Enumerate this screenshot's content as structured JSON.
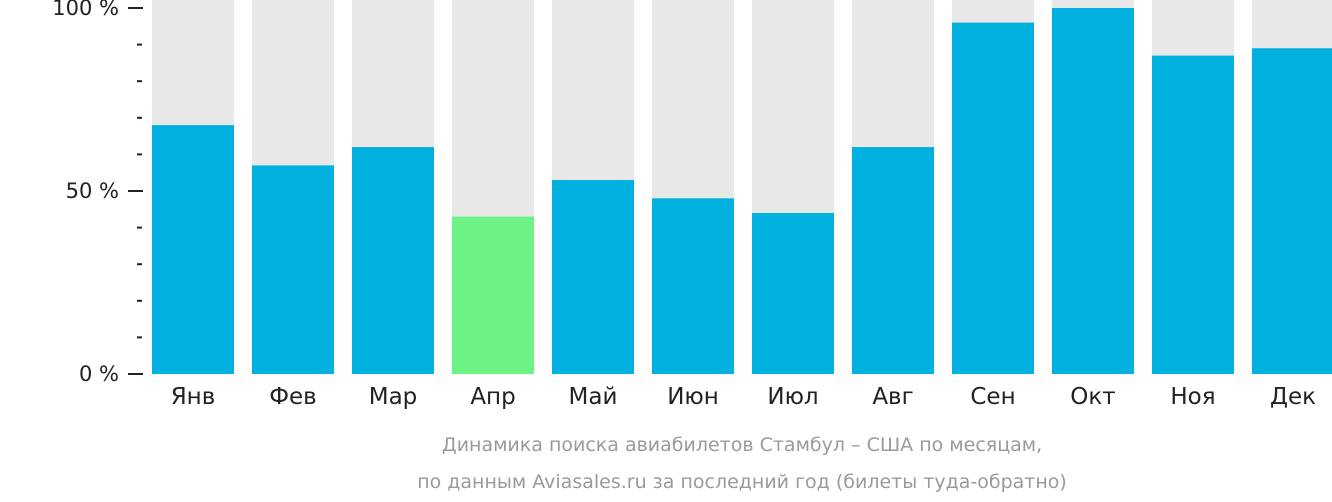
{
  "chart_data": {
    "type": "bar",
    "categories": [
      "Янв",
      "Фев",
      "Мар",
      "Апр",
      "Май",
      "Июн",
      "Июл",
      "Авг",
      "Сен",
      "Окт",
      "Ноя",
      "Дек"
    ],
    "values": [
      68,
      57,
      62,
      43,
      53,
      48,
      44,
      62,
      96,
      100,
      87,
      89
    ],
    "ylim": [
      0,
      100
    ],
    "yticks": [
      {
        "value": 0,
        "label": "0 %"
      },
      {
        "value": 50,
        "label": "50 %"
      },
      {
        "value": 100,
        "label": "100 %"
      }
    ],
    "minor_ticks_between": 4,
    "highlight_index": 3,
    "colors": {
      "bar": "#00b0de",
      "highlight": "#6cf285",
      "background_bar": "#e8e8e8",
      "axis": "#222222"
    },
    "caption": [
      "Динамика поиска авиабилетов Стамбул – США по месяцам,",
      "по данным Aviasales.ru за последний год (билеты туда-обратно)"
    ]
  }
}
